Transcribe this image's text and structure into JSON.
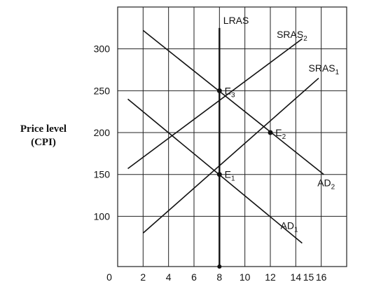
{
  "chart_data": {
    "type": "line",
    "ylabel": "Price level",
    "ylabel_sub": "(CPI)",
    "origin_label": "0",
    "x_ticks": [
      {
        "value": 2,
        "label": "2"
      },
      {
        "value": 4,
        "label": "4"
      },
      {
        "value": 6,
        "label": "6"
      },
      {
        "value": 8,
        "label": "8"
      },
      {
        "value": 10,
        "label": "10"
      },
      {
        "value": 12,
        "label": "12"
      },
      {
        "value": 14,
        "label": "14"
      },
      {
        "value": 15,
        "label": "15"
      },
      {
        "value": 16,
        "label": "16"
      }
    ],
    "y_ticks": [
      {
        "value": 100,
        "label": "100"
      },
      {
        "value": 150,
        "label": "150"
      },
      {
        "value": 200,
        "label": "200"
      },
      {
        "value": 250,
        "label": "250"
      },
      {
        "value": 300,
        "label": "300"
      }
    ],
    "xlim": [
      0,
      18
    ],
    "ylim": [
      40,
      350
    ],
    "grid": true,
    "series": [
      {
        "name": "LRAS",
        "sub": "",
        "points": [
          [
            8,
            325
          ],
          [
            8,
            40
          ]
        ],
        "label_at": [
          8.3,
          330
        ]
      },
      {
        "name": "SRAS",
        "sub": "2",
        "points": [
          [
            0.8,
            157
          ],
          [
            14.5,
            312
          ]
        ],
        "label_at": [
          12.5,
          313
        ]
      },
      {
        "name": "SRAS",
        "sub": "1",
        "points": [
          [
            2,
            80
          ],
          [
            15.8,
            265
          ]
        ],
        "label_at": [
          15,
          273
        ]
      },
      {
        "name": "AD",
        "sub": "1",
        "points": [
          [
            0.8,
            240
          ],
          [
            14.5,
            68
          ]
        ],
        "label_at": [
          12.8,
          85
        ]
      },
      {
        "name": "AD",
        "sub": "2",
        "points": [
          [
            2,
            322
          ],
          [
            16.2,
            150
          ]
        ],
        "label_at": [
          15.7,
          136
        ]
      }
    ],
    "points": [
      {
        "name": "E",
        "sub": "1",
        "x": 8,
        "y": 150,
        "label_at": [
          8.4,
          150
        ]
      },
      {
        "name": "E",
        "sub": "2",
        "x": 12,
        "y": 200,
        "label_at": [
          12.4,
          200
        ]
      },
      {
        "name": "E",
        "sub": "3",
        "x": 8,
        "y": 250,
        "label_at": [
          8.4,
          250
        ]
      }
    ],
    "marker": {
      "x": 8,
      "y": 40
    }
  }
}
